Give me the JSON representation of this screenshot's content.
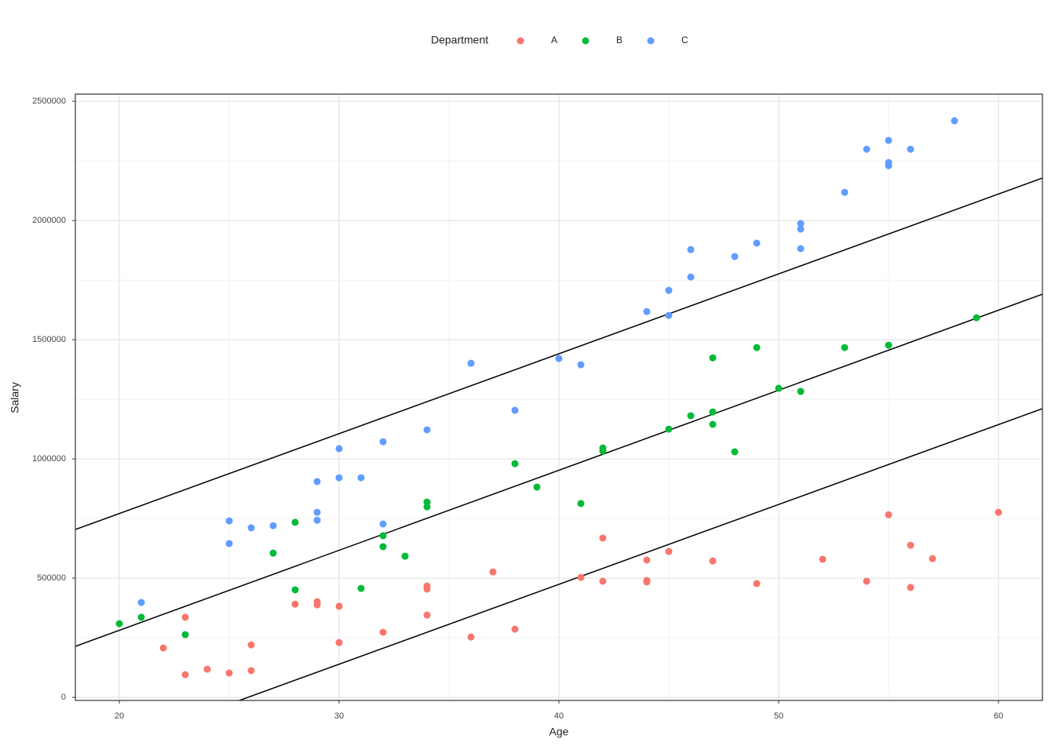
{
  "chart_data": {
    "type": "scatter",
    "xlabel": "Age",
    "ylabel": "Salary",
    "legend_title": "Department",
    "legend_position": "top",
    "xlim": [
      18,
      62
    ],
    "ylim": [
      -13000,
      2530000
    ],
    "xticks": [
      20,
      30,
      40,
      50,
      60
    ],
    "yticks": [
      0,
      500000,
      1000000,
      1500000,
      2000000,
      2500000
    ],
    "grid": true,
    "series": [
      {
        "name": "A",
        "color": "#F8766D",
        "x": [
          22,
          23,
          23,
          24,
          25,
          26,
          26,
          28,
          29,
          29,
          30,
          30,
          32,
          34,
          34,
          34,
          36,
          37,
          38,
          41,
          42,
          42,
          44,
          44,
          44,
          45,
          47,
          49,
          52,
          54,
          55,
          56,
          56,
          57,
          60
        ],
        "values": [
          207000,
          336000,
          95000,
          118000,
          102000,
          220000,
          112000,
          391000,
          401000,
          388000,
          382000,
          230000,
          273000,
          467000,
          454000,
          345000,
          253000,
          526000,
          286000,
          503000,
          668000,
          487000,
          576000,
          490000,
          484000,
          612000,
          572000,
          477000,
          579000,
          487000,
          766000,
          638000,
          461000,
          582000,
          776000
        ]
      },
      {
        "name": "B",
        "color": "#00BA38",
        "x": [
          20,
          21,
          23,
          27,
          28,
          28,
          31,
          32,
          32,
          33,
          34,
          34,
          38,
          39,
          41,
          42,
          42,
          45,
          46,
          47,
          47,
          47,
          48,
          49,
          50,
          51,
          53,
          55,
          59
        ],
        "values": [
          309000,
          336000,
          263000,
          605000,
          734000,
          451000,
          457000,
          678000,
          632000,
          592000,
          819000,
          799000,
          980000,
          882000,
          813000,
          1046000,
          1033000,
          1125000,
          1181000,
          1424000,
          1197000,
          1145000,
          1030000,
          1467000,
          1296000,
          1283000,
          1467000,
          1477000,
          1592000
        ]
      },
      {
        "name": "C",
        "color": "#619CFF",
        "x": [
          21,
          25,
          25,
          26,
          27,
          29,
          29,
          29,
          30,
          30,
          31,
          32,
          32,
          34,
          36,
          38,
          40,
          41,
          44,
          45,
          45,
          46,
          46,
          48,
          49,
          51,
          51,
          51,
          53,
          54,
          55,
          55,
          55,
          56,
          58
        ],
        "values": [
          398000,
          740000,
          645000,
          711000,
          720000,
          905000,
          776000,
          743000,
          1043000,
          921000,
          921000,
          1072000,
          727000,
          1122000,
          1401000,
          1204000,
          1421000,
          1395000,
          1618000,
          1707000,
          1602000,
          1878000,
          1763000,
          1849000,
          1905000,
          1987000,
          1964000,
          1882000,
          2118000,
          2299000,
          2336000,
          2243000,
          2230000,
          2299000,
          2418000
        ]
      }
    ],
    "fit_lines": [
      {
        "color": "#000000",
        "x": [
          18,
          62
        ],
        "values": [
          704000,
          2178000
        ]
      },
      {
        "color": "#000000",
        "x": [
          18,
          62
        ],
        "values": [
          214000,
          1691000
        ]
      },
      {
        "color": "#000000",
        "x": [
          18,
          62
        ],
        "values": [
          -263000,
          1211000
        ]
      }
    ]
  }
}
